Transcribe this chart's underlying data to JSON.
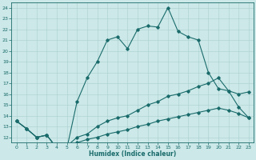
{
  "title": "",
  "xlabel": "Humidex (Indice chaleur)",
  "xlim": [
    -0.5,
    23.5
  ],
  "ylim": [
    11.5,
    24.5
  ],
  "yticks": [
    12,
    13,
    14,
    15,
    16,
    17,
    18,
    19,
    20,
    21,
    22,
    23,
    24
  ],
  "xticks": [
    0,
    1,
    2,
    3,
    4,
    5,
    6,
    7,
    8,
    9,
    10,
    11,
    12,
    13,
    14,
    15,
    16,
    17,
    18,
    19,
    20,
    21,
    22,
    23
  ],
  "bg_color": "#cce8e8",
  "grid_color": "#aad0d0",
  "line_color": "#1a6b6b",
  "line1_x": [
    0,
    1,
    2,
    3,
    4,
    5,
    6,
    7,
    8,
    9,
    10,
    11,
    12,
    13,
    14,
    15,
    16,
    17,
    18,
    19,
    20,
    21,
    22,
    23
  ],
  "line1_y": [
    13.5,
    12.8,
    12.0,
    12.2,
    11.0,
    11.0,
    15.3,
    17.5,
    19.0,
    21.0,
    21.3,
    20.2,
    22.0,
    22.3,
    22.2,
    24.0,
    21.8,
    21.3,
    21.0,
    18.0,
    16.5,
    16.3,
    14.8,
    13.8
  ],
  "line2_x": [
    0,
    1,
    2,
    3,
    4,
    5,
    6,
    7,
    8,
    9,
    10,
    11,
    12,
    13,
    14,
    15,
    16,
    17,
    18,
    19,
    20,
    21,
    22,
    23
  ],
  "line2_y": [
    13.5,
    12.8,
    12.0,
    12.2,
    11.0,
    11.2,
    12.0,
    12.3,
    13.0,
    13.5,
    13.8,
    14.0,
    14.5,
    15.0,
    15.3,
    15.8,
    16.0,
    16.3,
    16.7,
    17.0,
    17.5,
    16.3,
    16.0,
    16.2
  ],
  "line3_x": [
    0,
    1,
    2,
    3,
    4,
    5,
    6,
    7,
    8,
    9,
    10,
    11,
    12,
    13,
    14,
    15,
    16,
    17,
    18,
    19,
    20,
    21,
    22,
    23
  ],
  "line3_y": [
    13.5,
    12.8,
    12.0,
    12.2,
    11.0,
    11.2,
    11.5,
    11.8,
    12.0,
    12.3,
    12.5,
    12.7,
    13.0,
    13.2,
    13.5,
    13.7,
    13.9,
    14.1,
    14.3,
    14.5,
    14.7,
    14.5,
    14.2,
    13.8
  ]
}
